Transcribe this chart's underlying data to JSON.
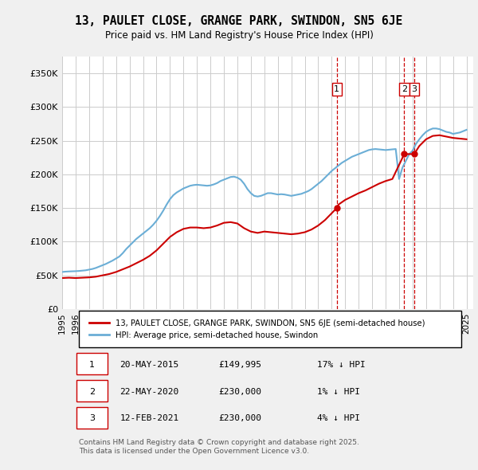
{
  "title": "13, PAULET CLOSE, GRANGE PARK, SWINDON, SN5 6JE",
  "subtitle": "Price paid vs. HM Land Registry's House Price Index (HPI)",
  "ylabel_ticks": [
    "£0",
    "£50K",
    "£100K",
    "£150K",
    "£200K",
    "£250K",
    "£300K",
    "£350K"
  ],
  "ytick_values": [
    0,
    50000,
    100000,
    150000,
    200000,
    250000,
    300000,
    350000
  ],
  "ylim": [
    0,
    375000
  ],
  "xlim_start": 1995.0,
  "xlim_end": 2025.5,
  "hpi_color": "#6baed6",
  "price_color": "#cc0000",
  "sale_marker_color": "#cc0000",
  "vline_color": "#cc0000",
  "legend_box_color": "#000000",
  "background_color": "#e8f4f8",
  "plot_bg_color": "#ffffff",
  "grid_color": "#cccccc",
  "sale1_x": 2015.38,
  "sale1_y": 149995,
  "sale2_x": 2020.38,
  "sale2_y": 230000,
  "sale3_x": 2021.12,
  "sale3_y": 230000,
  "sale1_label": "1",
  "sale2_label": "2",
  "sale3_label": "3",
  "legend_line1": "13, PAULET CLOSE, GRANGE PARK, SWINDON, SN5 6JE (semi-detached house)",
  "legend_line2": "HPI: Average price, semi-detached house, Swindon",
  "table_entries": [
    {
      "num": "1",
      "date": "20-MAY-2015",
      "price": "£149,995",
      "hpi": "17% ↓ HPI"
    },
    {
      "num": "2",
      "date": "22-MAY-2020",
      "price": "£230,000",
      "hpi": "1% ↓ HPI"
    },
    {
      "num": "3",
      "date": "12-FEB-2021",
      "price": "£230,000",
      "hpi": "4% ↓ HPI"
    }
  ],
  "footnote": "Contains HM Land Registry data © Crown copyright and database right 2025.\nThis data is licensed under the Open Government Licence v3.0.",
  "hpi_years": [
    1995.0,
    1995.25,
    1995.5,
    1995.75,
    1996.0,
    1996.25,
    1996.5,
    1996.75,
    1997.0,
    1997.25,
    1997.5,
    1997.75,
    1998.0,
    1998.25,
    1998.5,
    1998.75,
    1999.0,
    1999.25,
    1999.5,
    1999.75,
    2000.0,
    2000.25,
    2000.5,
    2000.75,
    2001.0,
    2001.25,
    2001.5,
    2001.75,
    2002.0,
    2002.25,
    2002.5,
    2002.75,
    2003.0,
    2003.25,
    2003.5,
    2003.75,
    2004.0,
    2004.25,
    2004.5,
    2004.75,
    2005.0,
    2005.25,
    2005.5,
    2005.75,
    2006.0,
    2006.25,
    2006.5,
    2006.75,
    2007.0,
    2007.25,
    2007.5,
    2007.75,
    2008.0,
    2008.25,
    2008.5,
    2008.75,
    2009.0,
    2009.25,
    2009.5,
    2009.75,
    2010.0,
    2010.25,
    2010.5,
    2010.75,
    2011.0,
    2011.25,
    2011.5,
    2011.75,
    2012.0,
    2012.25,
    2012.5,
    2012.75,
    2013.0,
    2013.25,
    2013.5,
    2013.75,
    2014.0,
    2014.25,
    2014.5,
    2014.75,
    2015.0,
    2015.25,
    2015.5,
    2015.75,
    2016.0,
    2016.25,
    2016.5,
    2016.75,
    2017.0,
    2017.25,
    2017.5,
    2017.75,
    2018.0,
    2018.25,
    2018.5,
    2018.75,
    2019.0,
    2019.25,
    2019.5,
    2019.75,
    2020.0,
    2020.25,
    2020.5,
    2020.75,
    2021.0,
    2021.25,
    2021.5,
    2021.75,
    2022.0,
    2022.25,
    2022.5,
    2022.75,
    2023.0,
    2023.25,
    2023.5,
    2023.75,
    2024.0,
    2024.25,
    2024.5,
    2024.75,
    2025.0
  ],
  "hpi_values": [
    55000,
    55500,
    55800,
    56000,
    56200,
    56500,
    57000,
    57500,
    58500,
    59500,
    61000,
    63000,
    65000,
    67000,
    69500,
    72000,
    75000,
    78000,
    83000,
    89000,
    94000,
    99000,
    104000,
    108000,
    112000,
    116000,
    120000,
    125000,
    131000,
    138000,
    146000,
    155000,
    163000,
    169000,
    173000,
    176000,
    179000,
    181000,
    183000,
    184000,
    184500,
    184000,
    183500,
    183000,
    183500,
    185000,
    187000,
    190000,
    192000,
    194000,
    196000,
    196500,
    195000,
    192000,
    186000,
    178000,
    172000,
    168000,
    167000,
    168000,
    170000,
    172000,
    172000,
    171000,
    170000,
    170500,
    170000,
    169000,
    168000,
    169000,
    170000,
    171000,
    173000,
    175000,
    178000,
    182000,
    186000,
    190000,
    195000,
    200000,
    205000,
    209000,
    213000,
    217000,
    220000,
    223000,
    226000,
    228000,
    230000,
    232000,
    234000,
    236000,
    237000,
    237500,
    237000,
    236500,
    236000,
    236500,
    237000,
    237500,
    193000,
    210000,
    220000,
    230000,
    235000,
    245000,
    252000,
    258000,
    263000,
    266000,
    268000,
    268000,
    267000,
    265000,
    263000,
    262000,
    260000,
    261000,
    262000,
    264000,
    266000
  ],
  "price_years": [
    1995.0,
    1995.5,
    1996.0,
    1996.5,
    1997.0,
    1997.5,
    1998.0,
    1998.5,
    1999.0,
    1999.5,
    2000.0,
    2000.5,
    2001.0,
    2001.5,
    2002.0,
    2002.5,
    2003.0,
    2003.5,
    2004.0,
    2004.5,
    2005.0,
    2005.5,
    2006.0,
    2006.5,
    2007.0,
    2007.5,
    2008.0,
    2008.5,
    2009.0,
    2009.5,
    2010.0,
    2010.5,
    2011.0,
    2011.5,
    2012.0,
    2012.5,
    2013.0,
    2013.5,
    2014.0,
    2014.5,
    2015.38,
    2015.5,
    2016.0,
    2016.5,
    2017.0,
    2017.5,
    2018.0,
    2018.5,
    2019.0,
    2019.5,
    2020.38,
    2021.12,
    2021.5,
    2022.0,
    2022.5,
    2023.0,
    2023.5,
    2024.0,
    2024.5,
    2025.0
  ],
  "price_values": [
    46000,
    46500,
    46000,
    46500,
    47000,
    48000,
    50000,
    52000,
    55000,
    59000,
    63000,
    68000,
    73000,
    79000,
    87000,
    97000,
    107000,
    114000,
    119000,
    121000,
    121000,
    120000,
    121000,
    124000,
    128000,
    129000,
    127000,
    120000,
    115000,
    113000,
    115000,
    114000,
    113000,
    112000,
    111000,
    112000,
    114000,
    118000,
    124000,
    132000,
    149995,
    155000,
    162000,
    167000,
    172000,
    176000,
    181000,
    186000,
    190000,
    193000,
    230000,
    230000,
    242000,
    252000,
    257000,
    258000,
    256000,
    254000,
    253000,
    252000
  ],
  "xtick_years": [
    1995,
    1996,
    1997,
    1998,
    1999,
    2000,
    2001,
    2002,
    2003,
    2004,
    2005,
    2006,
    2007,
    2008,
    2009,
    2010,
    2011,
    2012,
    2013,
    2014,
    2015,
    2016,
    2017,
    2018,
    2019,
    2020,
    2021,
    2022,
    2023,
    2024,
    2025
  ]
}
